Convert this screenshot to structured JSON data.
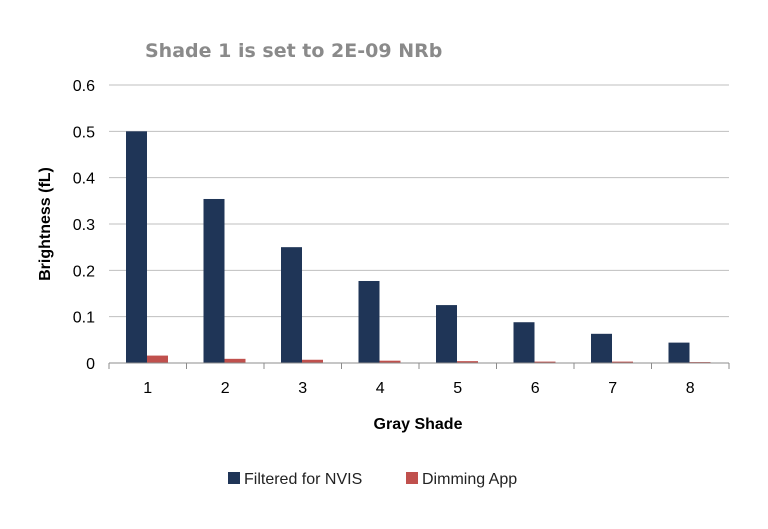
{
  "chart_data": {
    "type": "bar",
    "title": "Shade 1 is set to 2E-09 NRb",
    "xlabel": "Gray Shade",
    "ylabel": "Brightness (fL)",
    "categories": [
      "1",
      "2",
      "3",
      "4",
      "5",
      "6",
      "7",
      "8"
    ],
    "ylim": [
      0,
      0.6
    ],
    "yticks": [
      "0",
      "0.1",
      "0.2",
      "0.3",
      "0.4",
      "0.5",
      "0.6"
    ],
    "grid": true,
    "legend_position": "bottom",
    "series": [
      {
        "name": "Filtered for NVIS",
        "color": "#1f3557",
        "values": [
          0.5,
          0.354,
          0.25,
          0.177,
          0.125,
          0.088,
          0.063,
          0.044
        ]
      },
      {
        "name": "Dimming App",
        "color": "#c0504d",
        "values": [
          0.016,
          0.009,
          0.007,
          0.005,
          0.004,
          0.003,
          0.003,
          0.002
        ]
      }
    ]
  }
}
